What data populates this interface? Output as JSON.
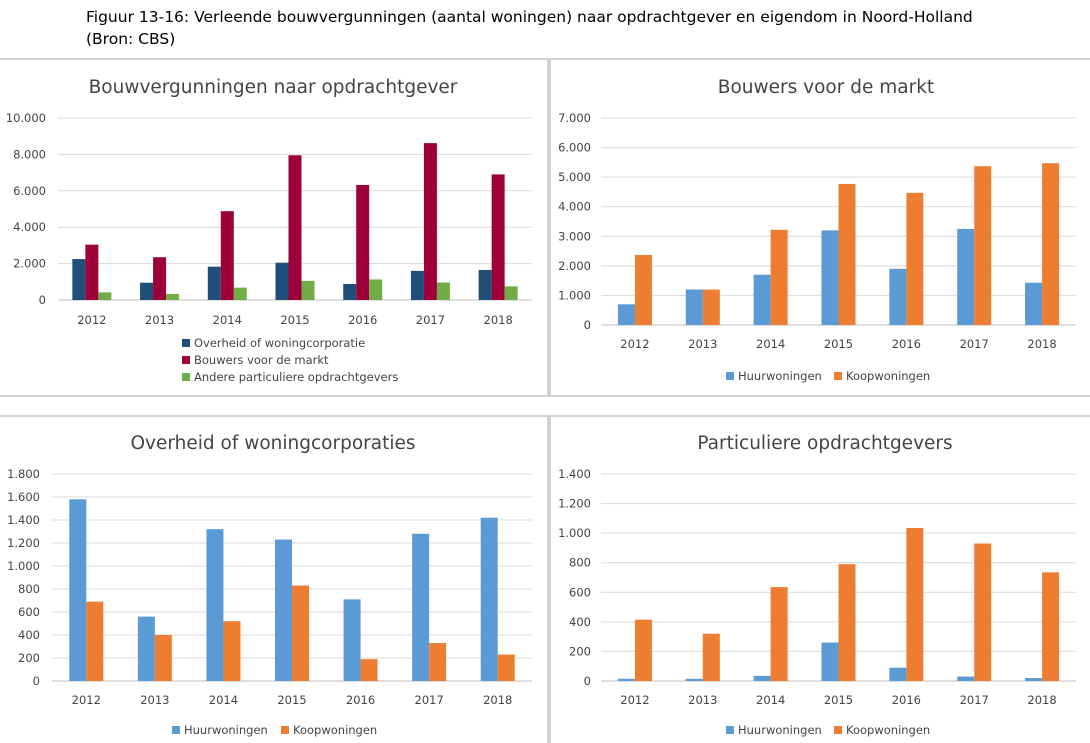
{
  "caption": {
    "line1": "Figuur 13-16: Verleende bouwvergunningen (aantal woningen) naar opdrachtgever en eigendom in Noord-Holland",
    "line2": "(Bron: CBS)"
  },
  "chart_data": [
    {
      "id": "c1",
      "type": "bar",
      "title": "Bouwvergunningen naar opdrachtgever",
      "categories": [
        "2012",
        "2013",
        "2014",
        "2015",
        "2016",
        "2017",
        "2018"
      ],
      "ylim": [
        0,
        10000
      ],
      "yticks": [
        0,
        2000,
        4000,
        6000,
        8000,
        10000
      ],
      "ytick_labels": [
        "0",
        "2.000",
        "4.000",
        "6.000",
        "8.000",
        "10.000"
      ],
      "grid": true,
      "legend_position": "bottom-stacked",
      "series": [
        {
          "name": "Overheid of woningcorporatie",
          "color": "#1f4e79",
          "values": [
            2250,
            950,
            1830,
            2050,
            880,
            1600,
            1650
          ]
        },
        {
          "name": "Bouwers voor de markt",
          "color": "#9e0039",
          "values": [
            3040,
            2350,
            4880,
            7950,
            6320,
            8620,
            6900
          ]
        },
        {
          "name": "Andere particuliere opdrachtgevers",
          "color": "#70ad47",
          "values": [
            420,
            330,
            680,
            1050,
            1130,
            960,
            750
          ]
        }
      ]
    },
    {
      "id": "c2",
      "type": "bar",
      "title": "Bouwers voor de markt",
      "categories": [
        "2012",
        "2013",
        "2014",
        "2015",
        "2016",
        "2017",
        "2018"
      ],
      "ylim": [
        0,
        7000
      ],
      "yticks": [
        0,
        1000,
        2000,
        3000,
        4000,
        5000,
        6000,
        7000
      ],
      "ytick_labels": [
        "0",
        "1.000",
        "2.000",
        "3.000",
        "4.000",
        "5.000",
        "6.000",
        "7.000"
      ],
      "grid": true,
      "legend_position": "bottom",
      "series": [
        {
          "name": "Huurwoningen",
          "color": "#5b9bd5",
          "values": [
            700,
            1200,
            1700,
            3200,
            1900,
            3250,
            1430
          ]
        },
        {
          "name": "Koopwoningen",
          "color": "#ed7d31",
          "values": [
            2370,
            1200,
            3220,
            4770,
            4470,
            5370,
            5470
          ]
        }
      ]
    },
    {
      "id": "c3",
      "type": "bar",
      "title": "Overheid of woningcorporaties",
      "categories": [
        "2012",
        "2013",
        "2014",
        "2015",
        "2016",
        "2017",
        "2018"
      ],
      "ylim": [
        0,
        1800
      ],
      "yticks": [
        0,
        200,
        400,
        600,
        800,
        1000,
        1200,
        1400,
        1600,
        1800
      ],
      "ytick_labels": [
        "0",
        "200",
        "400",
        "600",
        "800",
        "1.000",
        "1.200",
        "1.400",
        "1.600",
        "1.800"
      ],
      "grid": true,
      "legend_position": "bottom",
      "series": [
        {
          "name": "Huurwoningen",
          "color": "#5b9bd5",
          "values": [
            1580,
            560,
            1320,
            1230,
            710,
            1280,
            1420
          ]
        },
        {
          "name": "Koopwoningen",
          "color": "#ed7d31",
          "values": [
            690,
            400,
            520,
            830,
            190,
            330,
            230
          ]
        }
      ]
    },
    {
      "id": "c4",
      "type": "bar",
      "title": "Particuliere opdrachtgevers",
      "categories": [
        "2012",
        "2013",
        "2014",
        "2015",
        "2016",
        "2017",
        "2018"
      ],
      "ylim": [
        0,
        1400
      ],
      "yticks": [
        0,
        200,
        400,
        600,
        800,
        1000,
        1200,
        1400
      ],
      "ytick_labels": [
        "0",
        "200",
        "400",
        "600",
        "800",
        "1.000",
        "1.200",
        "1.400"
      ],
      "grid": true,
      "legend_position": "bottom",
      "series": [
        {
          "name": "Huurwoningen",
          "color": "#5b9bd5",
          "values": [
            15,
            15,
            35,
            260,
            90,
            30,
            20
          ]
        },
        {
          "name": "Koopwoningen",
          "color": "#ed7d31",
          "values": [
            415,
            320,
            635,
            790,
            1035,
            930,
            735
          ]
        }
      ]
    }
  ]
}
